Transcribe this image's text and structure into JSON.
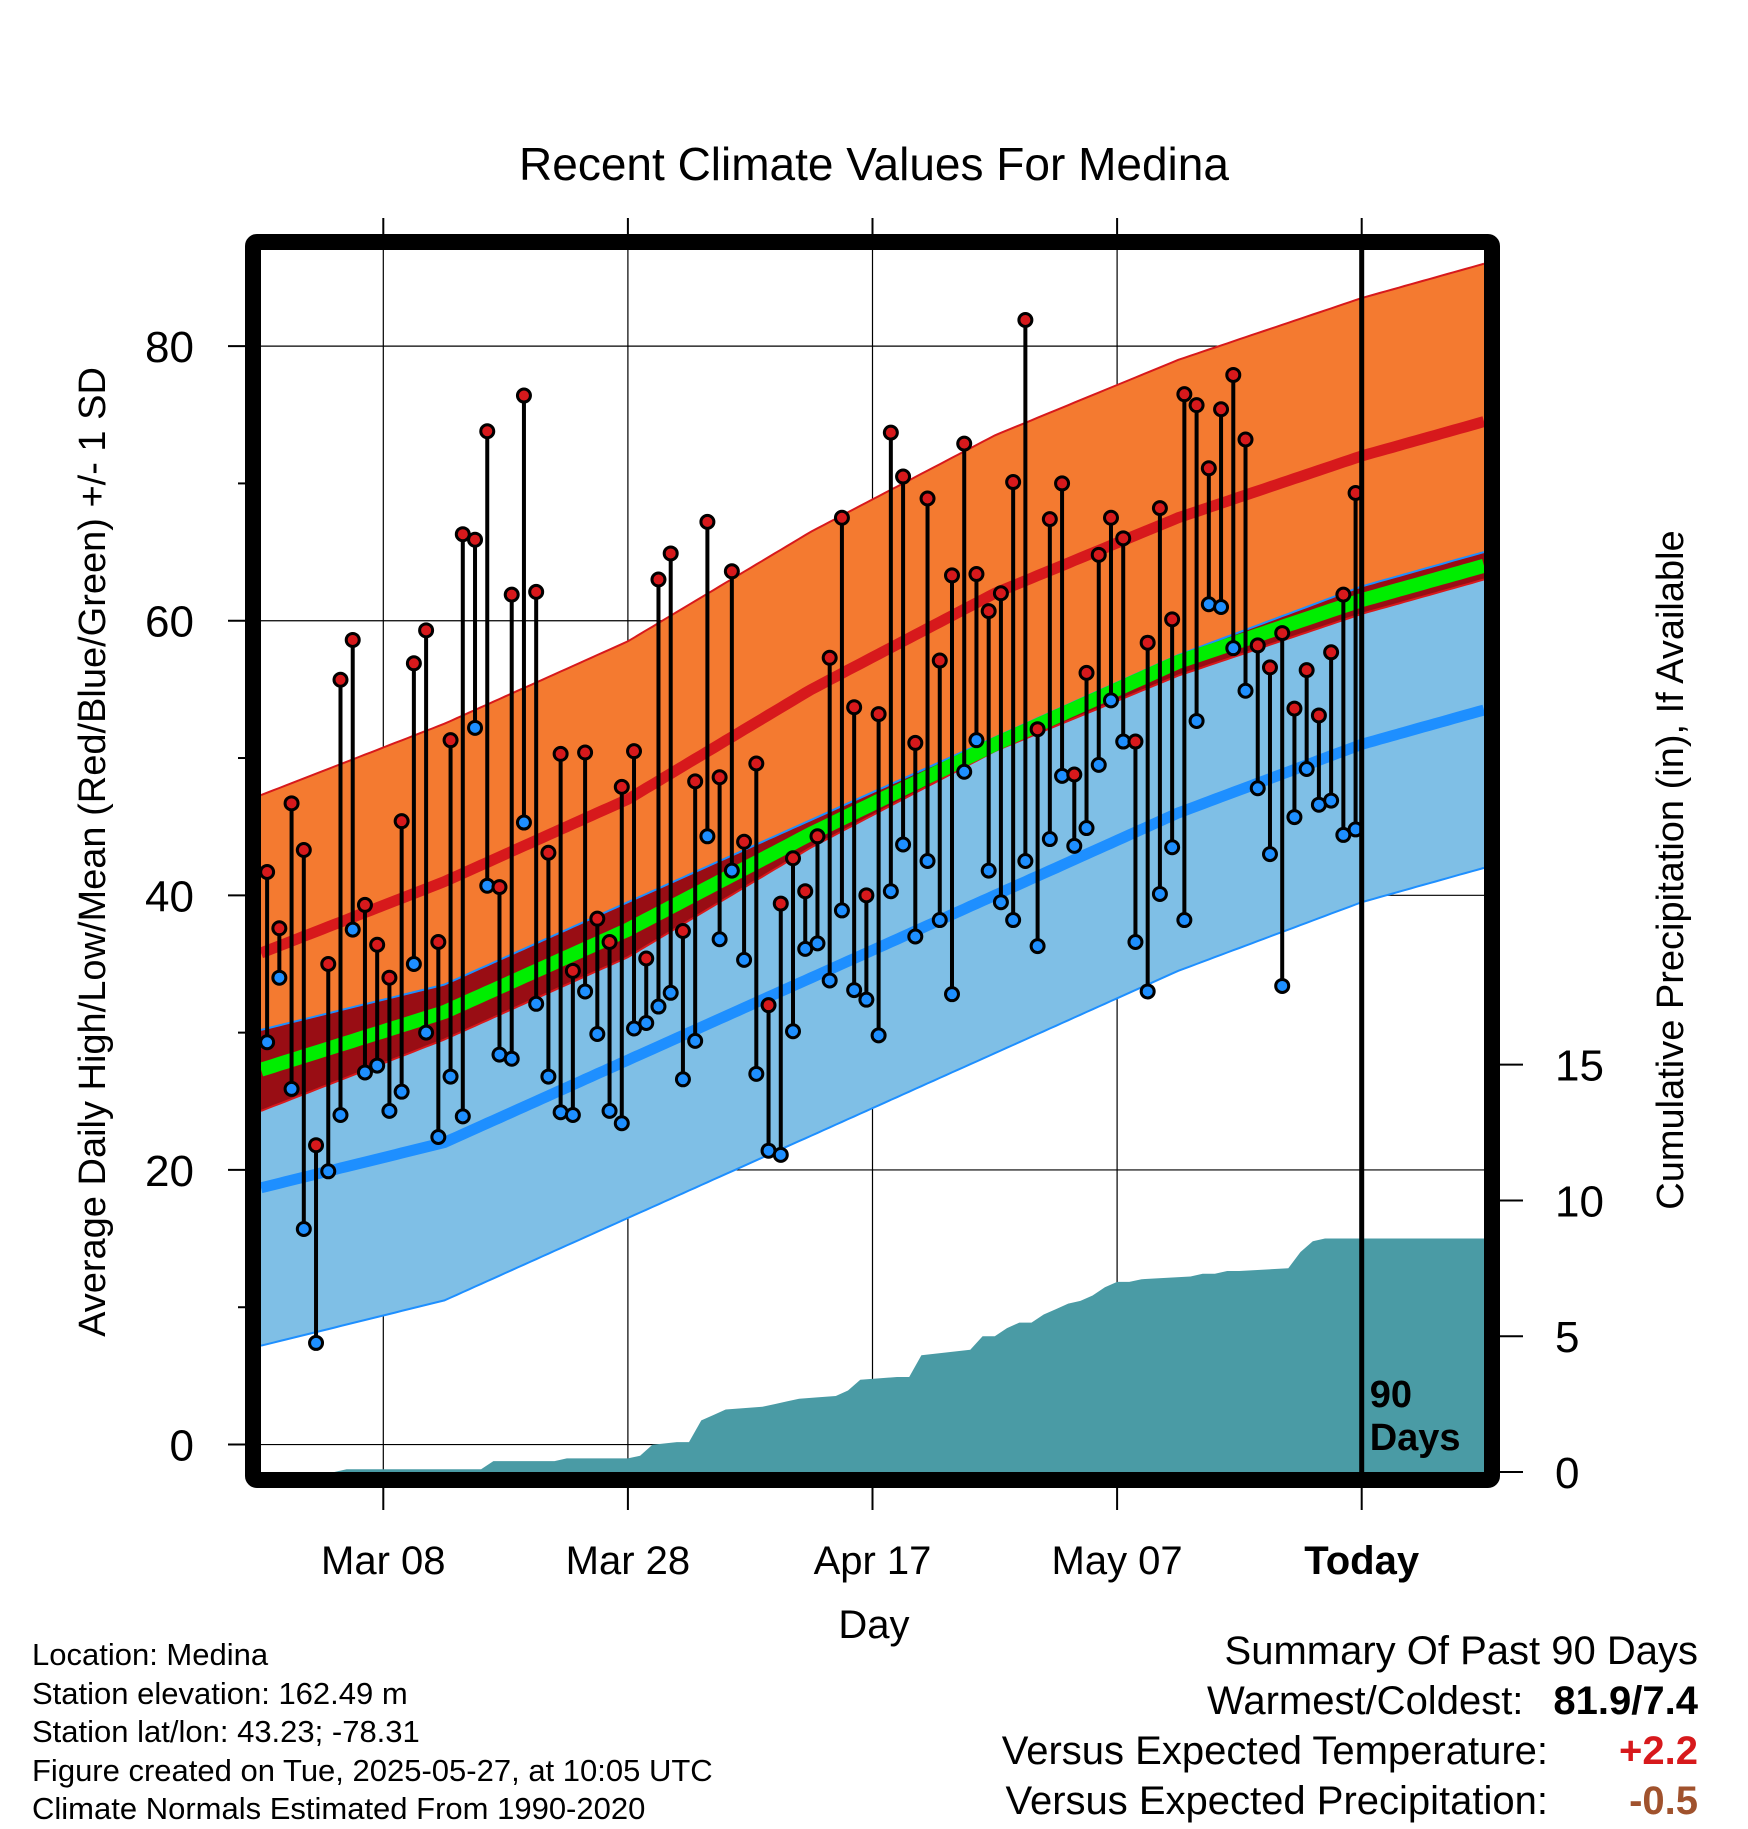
{
  "chart_data": {
    "type": "line",
    "title": "Recent Climate Values For Medina",
    "xlabel": "Day",
    "ylabel": "Average Daily High/Low/Mean (Red/Blue/Green) +/- 1 SD",
    "ylabel_right": "Cumulative Precipitation (in), If Available",
    "x_tick_labels": [
      "Mar 08",
      "Mar 28",
      "Apr 17",
      "May 07",
      "Today"
    ],
    "y_ticks": [
      0,
      20,
      40,
      60,
      80
    ],
    "y2_ticks": [
      0,
      5,
      10,
      15
    ],
    "ylim": [
      -2,
      87
    ],
    "y2lim": [
      0,
      45
    ],
    "xlim": [
      0,
      100
    ],
    "today_day": 90,
    "today_annotation": [
      "90",
      "Days"
    ],
    "grid": true,
    "normals": {
      "high_mean": [
        [
          0,
          35.8
        ],
        [
          15,
          41
        ],
        [
          30,
          47
        ],
        [
          45,
          55
        ],
        [
          60,
          62
        ],
        [
          75,
          67.5
        ],
        [
          90,
          72
        ],
        [
          100,
          74.5
        ]
      ],
      "high_sd": 11.5,
      "low_mean": [
        [
          0,
          18.7
        ],
        [
          15,
          22
        ],
        [
          30,
          28
        ],
        [
          45,
          34
        ],
        [
          60,
          40
        ],
        [
          75,
          46
        ],
        [
          90,
          51
        ],
        [
          100,
          53.5
        ]
      ],
      "low_sd": 11.5,
      "mean": [
        [
          0,
          27.3
        ],
        [
          15,
          31.5
        ],
        [
          30,
          37.5
        ],
        [
          45,
          44.5
        ],
        [
          60,
          51
        ],
        [
          75,
          57
        ],
        [
          90,
          61.5
        ],
        [
          100,
          64
        ]
      ]
    },
    "daily": [
      {
        "day": 0,
        "high": 41.7,
        "low": 29.3
      },
      {
        "day": 1,
        "high": 37.6,
        "low": 34.0
      },
      {
        "day": 2,
        "high": 46.7,
        "low": 25.9
      },
      {
        "day": 3,
        "high": 43.3,
        "low": 15.7
      },
      {
        "day": 4,
        "high": 21.8,
        "low": 7.4
      },
      {
        "day": 5,
        "high": 35.0,
        "low": 19.9
      },
      {
        "day": 6,
        "high": 55.7,
        "low": 24.0
      },
      {
        "day": 7,
        "high": 58.6,
        "low": 37.5
      },
      {
        "day": 8,
        "high": 39.3,
        "low": 27.1
      },
      {
        "day": 9,
        "high": 36.4,
        "low": 27.6
      },
      {
        "day": 10,
        "high": 34.0,
        "low": 24.3
      },
      {
        "day": 11,
        "high": 45.4,
        "low": 25.7
      },
      {
        "day": 12,
        "high": 56.9,
        "low": 35.0
      },
      {
        "day": 13,
        "high": 59.3,
        "low": 30.0
      },
      {
        "day": 14,
        "high": 36.6,
        "low": 22.4
      },
      {
        "day": 15,
        "high": 51.3,
        "low": 26.8
      },
      {
        "day": 16,
        "high": 66.3,
        "low": 23.9
      },
      {
        "day": 17,
        "high": 65.9,
        "low": 52.2
      },
      {
        "day": 18,
        "high": 73.8,
        "low": 40.7
      },
      {
        "day": 19,
        "high": 40.6,
        "low": 28.4
      },
      {
        "day": 20,
        "high": 61.9,
        "low": 28.1
      },
      {
        "day": 21,
        "high": 76.4,
        "low": 45.3
      },
      {
        "day": 22,
        "high": 62.1,
        "low": 32.1
      },
      {
        "day": 23,
        "high": 43.1,
        "low": 26.8
      },
      {
        "day": 24,
        "high": 50.3,
        "low": 24.2
      },
      {
        "day": 25,
        "high": 34.5,
        "low": 24.0
      },
      {
        "day": 26,
        "high": 50.4,
        "low": 33.0
      },
      {
        "day": 27,
        "high": 38.3,
        "low": 29.9
      },
      {
        "day": 28,
        "high": 36.6,
        "low": 24.3
      },
      {
        "day": 29,
        "high": 47.9,
        "low": 23.4
      },
      {
        "day": 30,
        "high": 50.5,
        "low": 30.3
      },
      {
        "day": 31,
        "high": 35.4,
        "low": 30.7
      },
      {
        "day": 32,
        "high": 63.0,
        "low": 31.9
      },
      {
        "day": 33,
        "high": 64.9,
        "low": 32.9
      },
      {
        "day": 34,
        "high": 37.4,
        "low": 26.6
      },
      {
        "day": 35,
        "high": 48.3,
        "low": 29.4
      },
      {
        "day": 36,
        "high": 67.2,
        "low": 44.3
      },
      {
        "day": 37,
        "high": 48.6,
        "low": 36.8
      },
      {
        "day": 38,
        "high": 63.6,
        "low": 41.8
      },
      {
        "day": 39,
        "high": 43.9,
        "low": 35.3
      },
      {
        "day": 40,
        "high": 49.6,
        "low": 27.0
      },
      {
        "day": 41,
        "high": 32.0,
        "low": 21.4
      },
      {
        "day": 42,
        "high": 39.4,
        "low": 21.1
      },
      {
        "day": 43,
        "high": 42.7,
        "low": 30.1
      },
      {
        "day": 44,
        "high": 40.3,
        "low": 36.1
      },
      {
        "day": 45,
        "high": 44.3,
        "low": 36.5
      },
      {
        "day": 46,
        "high": 57.3,
        "low": 33.8
      },
      {
        "day": 47,
        "high": 67.5,
        "low": 38.9
      },
      {
        "day": 48,
        "high": 53.7,
        "low": 33.1
      },
      {
        "day": 49,
        "high": 40.0,
        "low": 32.4
      },
      {
        "day": 50,
        "high": 53.2,
        "low": 29.8
      },
      {
        "day": 51,
        "high": 73.7,
        "low": 40.3
      },
      {
        "day": 52,
        "high": 70.5,
        "low": 43.7
      },
      {
        "day": 53,
        "high": 51.1,
        "low": 37.0
      },
      {
        "day": 54,
        "high": 68.9,
        "low": 42.5
      },
      {
        "day": 55,
        "high": 57.1,
        "low": 38.2
      },
      {
        "day": 56,
        "high": 63.3,
        "low": 32.8
      },
      {
        "day": 57,
        "high": 72.9,
        "low": 49.0
      },
      {
        "day": 58,
        "high": 63.4,
        "low": 51.3
      },
      {
        "day": 59,
        "high": 60.7,
        "low": 41.8
      },
      {
        "day": 60,
        "high": 62.0,
        "low": 39.5
      },
      {
        "day": 61,
        "high": 70.1,
        "low": 38.2
      },
      {
        "day": 62,
        "high": 81.9,
        "low": 42.5
      },
      {
        "day": 63,
        "high": 52.1,
        "low": 36.3
      },
      {
        "day": 64,
        "high": 67.4,
        "low": 44.1
      },
      {
        "day": 65,
        "high": 70.0,
        "low": 48.7
      },
      {
        "day": 66,
        "high": 48.8,
        "low": 43.6
      },
      {
        "day": 67,
        "high": 56.2,
        "low": 44.9
      },
      {
        "day": 68,
        "high": 64.8,
        "low": 49.5
      },
      {
        "day": 69,
        "high": 67.5,
        "low": 54.2
      },
      {
        "day": 70,
        "high": 66.0,
        "low": 51.2
      },
      {
        "day": 71,
        "high": 51.2,
        "low": 36.6
      },
      {
        "day": 72,
        "high": 58.4,
        "low": 33.0
      },
      {
        "day": 73,
        "high": 68.2,
        "low": 40.1
      },
      {
        "day": 74,
        "high": 60.1,
        "low": 43.5
      },
      {
        "day": 75,
        "high": 76.5,
        "low": 38.2
      },
      {
        "day": 76,
        "high": 75.7,
        "low": 52.7
      },
      {
        "day": 77,
        "high": 71.1,
        "low": 61.2
      },
      {
        "day": 78,
        "high": 75.4,
        "low": 61.0
      },
      {
        "day": 79,
        "high": 77.9,
        "low": 58.0
      },
      {
        "day": 80,
        "high": 73.2,
        "low": 54.9
      },
      {
        "day": 81,
        "high": 58.2,
        "low": 47.8
      },
      {
        "day": 82,
        "high": 56.6,
        "low": 43.0
      },
      {
        "day": 83,
        "high": 59.1,
        "low": 33.4
      },
      {
        "day": 84,
        "high": 53.6,
        "low": 45.7
      },
      {
        "day": 85,
        "high": 56.4,
        "low": 49.2
      },
      {
        "day": 86,
        "high": 53.1,
        "low": 46.6
      },
      {
        "day": 87,
        "high": 57.7,
        "low": 46.9
      },
      {
        "day": 88,
        "high": 61.9,
        "low": 44.4
      },
      {
        "day": 89,
        "high": 69.3,
        "low": 44.8
      }
    ],
    "precip_cumulative": [
      [
        0,
        0
      ],
      [
        6,
        0
      ],
      [
        7,
        0.1
      ],
      [
        17,
        0.1
      ],
      [
        18,
        0.1
      ],
      [
        19,
        0.4
      ],
      [
        24,
        0.4
      ],
      [
        25,
        0.5
      ],
      [
        30,
        0.5
      ],
      [
        31,
        0.6
      ],
      [
        32,
        1.0
      ],
      [
        34,
        1.1
      ],
      [
        35,
        1.1
      ],
      [
        36,
        1.9
      ],
      [
        37,
        2.1
      ],
      [
        38,
        2.3
      ],
      [
        41,
        2.4
      ],
      [
        42,
        2.5
      ],
      [
        43,
        2.6
      ],
      [
        44,
        2.7
      ],
      [
        47,
        2.8
      ],
      [
        48,
        3.0
      ],
      [
        49,
        3.4
      ],
      [
        52,
        3.5
      ],
      [
        53,
        3.5
      ],
      [
        54,
        4.3
      ],
      [
        58,
        4.5
      ],
      [
        59,
        5.0
      ],
      [
        60,
        5.0
      ],
      [
        61,
        5.3
      ],
      [
        62,
        5.5
      ],
      [
        63,
        5.5
      ],
      [
        64,
        5.8
      ],
      [
        65,
        6.0
      ],
      [
        66,
        6.2
      ],
      [
        67,
        6.3
      ],
      [
        68,
        6.5
      ],
      [
        69,
        6.8
      ],
      [
        70,
        7.0
      ],
      [
        71,
        7.0
      ],
      [
        72,
        7.1
      ],
      [
        76,
        7.2
      ],
      [
        77,
        7.3
      ],
      [
        78,
        7.3
      ],
      [
        79,
        7.4
      ],
      [
        80,
        7.4
      ],
      [
        84,
        7.5
      ],
      [
        85,
        8.1
      ],
      [
        86,
        8.5
      ],
      [
        87,
        8.6
      ],
      [
        100,
        8.6
      ]
    ],
    "colors": {
      "high": "#d7191c",
      "high_band": "#f47a30",
      "high_band_edge": "#d7191c",
      "low": "#1e8fff",
      "low_band": "#7fbfe6",
      "low_band_edge": "#1e8fff",
      "mean": "#00ee00",
      "overlap": "#990d14",
      "precip": "#4a9ba5",
      "frame": "#000000"
    }
  },
  "footer": {
    "location": "Location: Medina",
    "elevation": "Station elevation: 162.49 m",
    "latlon": "Station lat/lon: 43.23; -78.31",
    "created": "Figure created on Tue, 2025-05-27, at 10:05 UTC",
    "normals": "Climate Normals Estimated From 1990-2020"
  },
  "summary": {
    "title": "Summary Of Past 90 Days",
    "warm_cold_label": "Warmest/Coldest:",
    "warm_cold_value": "81.9/7.4",
    "temp_label": "Versus Expected Temperature:",
    "temp_value": "+2.2",
    "temp_color": "#d7191c",
    "precip_label": "Versus Expected Precipitation:",
    "precip_value": "-0.5",
    "precip_color": "#a0522d"
  }
}
